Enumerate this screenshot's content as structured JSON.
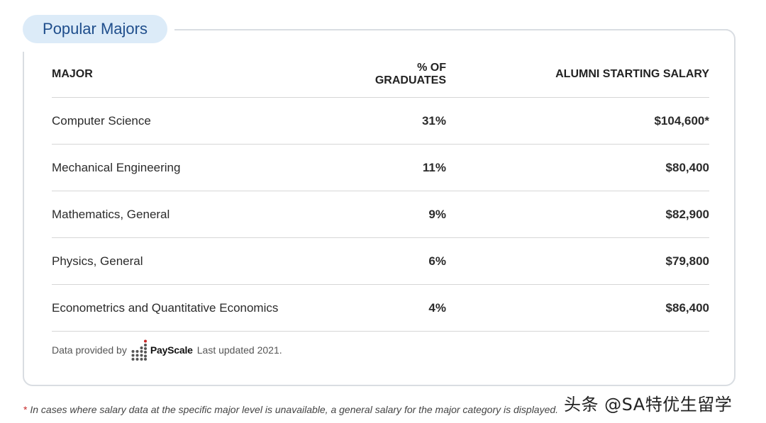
{
  "section": {
    "title": "Popular Majors"
  },
  "table": {
    "headers": [
      "MAJOR",
      "% OF GRADUATES",
      "ALUMNI STARTING SALARY"
    ],
    "rows": [
      {
        "major": "Computer Science",
        "pct": "31%",
        "salary": "$104,600*"
      },
      {
        "major": "Mechanical Engineering",
        "pct": "11%",
        "salary": "$80,400"
      },
      {
        "major": "Mathematics, General",
        "pct": "9%",
        "salary": "$82,900"
      },
      {
        "major": "Physics, General",
        "pct": "6%",
        "salary": "$79,800"
      },
      {
        "major": "Econometrics and Quantitative Economics",
        "pct": "4%",
        "salary": "$86,400"
      }
    ]
  },
  "footer": {
    "provided_by": "Data provided by",
    "logo_name": "PayScale",
    "updated": "Last updated 2021."
  },
  "footnote": {
    "star": "*",
    "text": "In cases where salary data at the specific major level is unavailable, a general salary for the major category is displayed."
  },
  "watermark": {
    "text": "头条 @SA特优生留学"
  },
  "colors": {
    "pill_bg": "#dcebf8",
    "pill_text": "#1f4e8c",
    "card_border": "#d9dde2",
    "footnote_star": "#c62828",
    "payscale_dot": "#c62828"
  }
}
